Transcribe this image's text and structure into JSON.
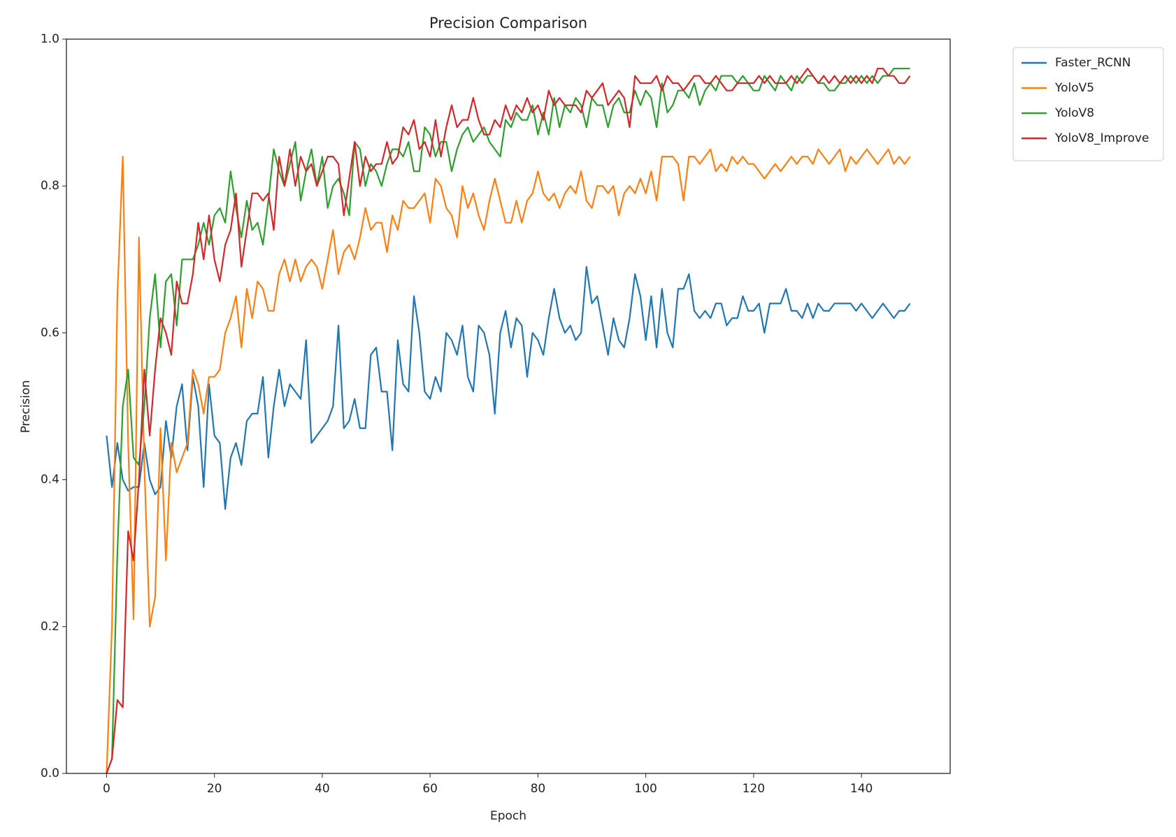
{
  "chart_data": {
    "type": "line",
    "title": "Precision Comparison",
    "xlabel": "Epoch",
    "ylabel": "Precision",
    "x": [
      0,
      1,
      2,
      3,
      4,
      5,
      6,
      7,
      8,
      9,
      10,
      11,
      12,
      13,
      14,
      15,
      16,
      17,
      18,
      19,
      20,
      21,
      22,
      23,
      24,
      25,
      26,
      27,
      28,
      29,
      30,
      31,
      32,
      33,
      34,
      35,
      36,
      37,
      38,
      39,
      40,
      41,
      42,
      43,
      44,
      45,
      46,
      47,
      48,
      49,
      50,
      51,
      52,
      53,
      54,
      55,
      56,
      57,
      58,
      59,
      60,
      61,
      62,
      63,
      64,
      65,
      66,
      67,
      68,
      69,
      70,
      71,
      72,
      73,
      74,
      75,
      76,
      77,
      78,
      79,
      80,
      81,
      82,
      83,
      84,
      85,
      86,
      87,
      88,
      89,
      90,
      91,
      92,
      93,
      94,
      95,
      96,
      97,
      98,
      99,
      100,
      101,
      102,
      103,
      104,
      105,
      106,
      107,
      108,
      109,
      110,
      111,
      112,
      113,
      114,
      115,
      116,
      117,
      118,
      119,
      120,
      121,
      122,
      123,
      124,
      125,
      126,
      127,
      128,
      129,
      130,
      131,
      132,
      133,
      134,
      135,
      136,
      137,
      138,
      139,
      140,
      141,
      142,
      143,
      144,
      145,
      146,
      147,
      148,
      149
    ],
    "series": [
      {
        "name": "Faster_RCNN",
        "color": "#1f77b4",
        "values": [
          0.46,
          0.39,
          0.45,
          0.4,
          0.385,
          0.39,
          0.39,
          0.45,
          0.4,
          0.38,
          0.39,
          0.48,
          0.43,
          0.5,
          0.53,
          0.44,
          0.54,
          0.5,
          0.39,
          0.53,
          0.46,
          0.45,
          0.36,
          0.43,
          0.45,
          0.42,
          0.48,
          0.49,
          0.49,
          0.54,
          0.43,
          0.5,
          0.55,
          0.5,
          0.53,
          0.52,
          0.51,
          0.59,
          0.45,
          0.46,
          0.47,
          0.48,
          0.5,
          0.61,
          0.47,
          0.48,
          0.51,
          0.47,
          0.47,
          0.57,
          0.58,
          0.52,
          0.52,
          0.44,
          0.59,
          0.53,
          0.52,
          0.65,
          0.6,
          0.52,
          0.51,
          0.54,
          0.52,
          0.6,
          0.59,
          0.57,
          0.61,
          0.54,
          0.52,
          0.61,
          0.6,
          0.57,
          0.49,
          0.6,
          0.63,
          0.58,
          0.62,
          0.61,
          0.54,
          0.6,
          0.59,
          0.57,
          0.62,
          0.66,
          0.62,
          0.6,
          0.61,
          0.59,
          0.6,
          0.69,
          0.64,
          0.65,
          0.61,
          0.57,
          0.62,
          0.59,
          0.58,
          0.62,
          0.68,
          0.65,
          0.59,
          0.65,
          0.58,
          0.66,
          0.6,
          0.58,
          0.66,
          0.66,
          0.68,
          0.63,
          0.62,
          0.63,
          0.62,
          0.64,
          0.64,
          0.61,
          0.62,
          0.62,
          0.65,
          0.63,
          0.63,
          0.64,
          0.6,
          0.64,
          0.64,
          0.64,
          0.66,
          0.63,
          0.63,
          0.62,
          0.64,
          0.62,
          0.64,
          0.63,
          0.63,
          0.64,
          0.64,
          0.64,
          0.64,
          0.63,
          0.64,
          0.63,
          0.62,
          0.63,
          0.64,
          0.63,
          0.62,
          0.63,
          0.63,
          0.64
        ]
      },
      {
        "name": "YoloV5",
        "color": "#ff7f0e",
        "values": [
          0.0,
          0.2,
          0.65,
          0.84,
          0.45,
          0.21,
          0.73,
          0.42,
          0.2,
          0.24,
          0.47,
          0.29,
          0.45,
          0.41,
          0.43,
          0.45,
          0.55,
          0.53,
          0.49,
          0.54,
          0.54,
          0.55,
          0.6,
          0.62,
          0.65,
          0.58,
          0.66,
          0.62,
          0.67,
          0.66,
          0.63,
          0.63,
          0.68,
          0.7,
          0.67,
          0.7,
          0.67,
          0.69,
          0.7,
          0.69,
          0.66,
          0.7,
          0.74,
          0.68,
          0.71,
          0.72,
          0.7,
          0.73,
          0.77,
          0.74,
          0.75,
          0.75,
          0.71,
          0.76,
          0.74,
          0.78,
          0.77,
          0.77,
          0.78,
          0.79,
          0.75,
          0.81,
          0.8,
          0.77,
          0.76,
          0.73,
          0.8,
          0.77,
          0.79,
          0.76,
          0.74,
          0.78,
          0.81,
          0.78,
          0.75,
          0.75,
          0.78,
          0.75,
          0.78,
          0.79,
          0.82,
          0.79,
          0.78,
          0.79,
          0.77,
          0.79,
          0.8,
          0.79,
          0.82,
          0.78,
          0.77,
          0.8,
          0.8,
          0.79,
          0.8,
          0.76,
          0.79,
          0.8,
          0.79,
          0.81,
          0.79,
          0.82,
          0.78,
          0.84,
          0.84,
          0.84,
          0.83,
          0.78,
          0.84,
          0.84,
          0.83,
          0.84,
          0.85,
          0.82,
          0.83,
          0.82,
          0.84,
          0.83,
          0.84,
          0.83,
          0.83,
          0.82,
          0.81,
          0.82,
          0.83,
          0.82,
          0.83,
          0.84,
          0.83,
          0.84,
          0.84,
          0.83,
          0.85,
          0.84,
          0.83,
          0.84,
          0.85,
          0.82,
          0.84,
          0.83,
          0.84,
          0.85,
          0.84,
          0.83,
          0.84,
          0.85,
          0.83,
          0.84,
          0.83,
          0.84
        ]
      },
      {
        "name": "YoloV8",
        "color": "#2ca02c",
        "values": [
          0.0,
          0.02,
          0.3,
          0.5,
          0.55,
          0.43,
          0.42,
          0.5,
          0.62,
          0.68,
          0.58,
          0.67,
          0.68,
          0.61,
          0.7,
          0.7,
          0.7,
          0.72,
          0.75,
          0.72,
          0.76,
          0.77,
          0.75,
          0.82,
          0.77,
          0.73,
          0.78,
          0.74,
          0.75,
          0.72,
          0.78,
          0.85,
          0.82,
          0.8,
          0.83,
          0.86,
          0.78,
          0.82,
          0.85,
          0.8,
          0.84,
          0.77,
          0.8,
          0.81,
          0.79,
          0.76,
          0.86,
          0.85,
          0.8,
          0.83,
          0.82,
          0.8,
          0.83,
          0.85,
          0.85,
          0.84,
          0.86,
          0.82,
          0.82,
          0.88,
          0.87,
          0.84,
          0.86,
          0.86,
          0.82,
          0.85,
          0.87,
          0.88,
          0.86,
          0.87,
          0.88,
          0.86,
          0.85,
          0.84,
          0.89,
          0.88,
          0.9,
          0.89,
          0.89,
          0.91,
          0.87,
          0.9,
          0.87,
          0.92,
          0.88,
          0.91,
          0.9,
          0.92,
          0.91,
          0.88,
          0.92,
          0.91,
          0.91,
          0.88,
          0.91,
          0.92,
          0.9,
          0.9,
          0.93,
          0.91,
          0.93,
          0.92,
          0.88,
          0.94,
          0.9,
          0.91,
          0.93,
          0.93,
          0.92,
          0.94,
          0.91,
          0.93,
          0.94,
          0.93,
          0.95,
          0.95,
          0.95,
          0.94,
          0.95,
          0.94,
          0.93,
          0.93,
          0.95,
          0.94,
          0.93,
          0.95,
          0.94,
          0.93,
          0.95,
          0.94,
          0.95,
          0.95,
          0.94,
          0.94,
          0.93,
          0.93,
          0.94,
          0.94,
          0.95,
          0.94,
          0.95,
          0.94,
          0.95,
          0.94,
          0.95,
          0.95,
          0.96,
          0.96,
          0.96,
          0.96
        ]
      },
      {
        "name": "YoloV8_Improve",
        "color": "#d62728",
        "values": [
          0.0,
          0.02,
          0.1,
          0.09,
          0.33,
          0.29,
          0.4,
          0.55,
          0.46,
          0.55,
          0.62,
          0.6,
          0.57,
          0.67,
          0.64,
          0.64,
          0.68,
          0.75,
          0.7,
          0.76,
          0.7,
          0.67,
          0.72,
          0.74,
          0.79,
          0.69,
          0.74,
          0.79,
          0.79,
          0.78,
          0.79,
          0.74,
          0.84,
          0.8,
          0.85,
          0.8,
          0.84,
          0.82,
          0.83,
          0.8,
          0.82,
          0.84,
          0.84,
          0.83,
          0.76,
          0.81,
          0.86,
          0.8,
          0.84,
          0.82,
          0.83,
          0.83,
          0.86,
          0.83,
          0.84,
          0.88,
          0.87,
          0.89,
          0.85,
          0.86,
          0.84,
          0.89,
          0.84,
          0.88,
          0.91,
          0.88,
          0.89,
          0.89,
          0.92,
          0.89,
          0.87,
          0.87,
          0.89,
          0.88,
          0.91,
          0.89,
          0.91,
          0.9,
          0.92,
          0.9,
          0.91,
          0.89,
          0.93,
          0.91,
          0.92,
          0.91,
          0.91,
          0.91,
          0.9,
          0.93,
          0.92,
          0.93,
          0.94,
          0.91,
          0.92,
          0.93,
          0.92,
          0.88,
          0.95,
          0.94,
          0.94,
          0.94,
          0.95,
          0.93,
          0.95,
          0.94,
          0.94,
          0.93,
          0.94,
          0.95,
          0.95,
          0.94,
          0.94,
          0.95,
          0.94,
          0.93,
          0.93,
          0.94,
          0.94,
          0.94,
          0.94,
          0.95,
          0.94,
          0.95,
          0.94,
          0.94,
          0.94,
          0.95,
          0.94,
          0.95,
          0.96,
          0.95,
          0.94,
          0.95,
          0.94,
          0.95,
          0.94,
          0.95,
          0.94,
          0.95,
          0.94,
          0.95,
          0.94,
          0.96,
          0.96,
          0.95,
          0.95,
          0.94,
          0.94,
          0.95
        ]
      }
    ],
    "xlim": [
      -7.45,
      156.45
    ],
    "ylim": [
      0,
      1
    ],
    "xticks": [
      0,
      20,
      40,
      60,
      80,
      100,
      120,
      140
    ],
    "yticks": [
      {
        "value": 0,
        "label": "0.0"
      },
      0.2,
      0.4,
      0.6,
      0.8,
      {
        "value": 1,
        "label": "1.0"
      }
    ],
    "legend": "outside upper right"
  }
}
